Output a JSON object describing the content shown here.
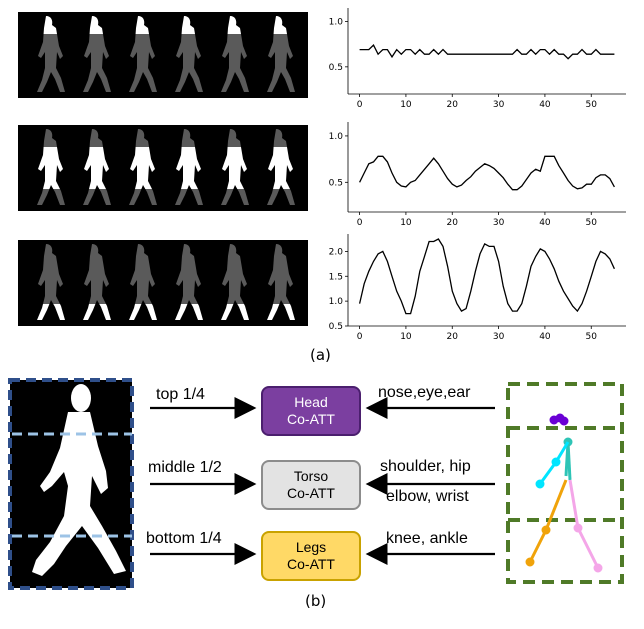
{
  "figure": {
    "caption_a": "(a)",
    "caption_b": "(b)"
  },
  "charts_meta": {
    "line_color": "#000000"
  },
  "chart_data": [
    {
      "type": "line",
      "x": [
        0,
        1,
        2,
        3,
        4,
        5,
        6,
        7,
        8,
        9,
        10,
        11,
        12,
        13,
        14,
        15,
        16,
        17,
        18,
        19,
        20,
        21,
        22,
        23,
        24,
        25,
        26,
        27,
        28,
        29,
        30,
        31,
        32,
        33,
        34,
        35,
        36,
        37,
        38,
        39,
        40,
        41,
        42,
        43,
        44,
        45,
        46,
        47,
        48,
        49,
        50,
        51,
        52,
        53,
        54,
        55
      ],
      "values": [
        0.69,
        0.69,
        0.69,
        0.74,
        0.64,
        0.69,
        0.69,
        0.61,
        0.69,
        0.64,
        0.69,
        0.69,
        0.64,
        0.69,
        0.64,
        0.64,
        0.69,
        0.64,
        0.69,
        0.64,
        0.64,
        0.64,
        0.64,
        0.64,
        0.64,
        0.64,
        0.64,
        0.64,
        0.64,
        0.64,
        0.64,
        0.64,
        0.64,
        0.64,
        0.69,
        0.64,
        0.64,
        0.69,
        0.64,
        0.69,
        0.69,
        0.64,
        0.69,
        0.64,
        0.64,
        0.59,
        0.64,
        0.64,
        0.69,
        0.64,
        0.64,
        0.69,
        0.64,
        0.64,
        0.64,
        0.64
      ],
      "xticks": [
        0,
        10,
        20,
        30,
        40,
        50
      ],
      "yticks": [
        0.5,
        1.0
      ],
      "ytick_labels": [
        "0.5",
        "1.0"
      ],
      "xlim": [
        -2.5,
        57.5
      ],
      "ylim": [
        0.2,
        1.15
      ],
      "grid": false
    },
    {
      "type": "line",
      "x": [
        0,
        1,
        2,
        3,
        4,
        5,
        6,
        7,
        8,
        9,
        10,
        11,
        12,
        13,
        14,
        15,
        16,
        17,
        18,
        19,
        20,
        21,
        22,
        23,
        24,
        25,
        26,
        27,
        28,
        29,
        30,
        31,
        32,
        33,
        34,
        35,
        36,
        37,
        38,
        39,
        40,
        41,
        42,
        43,
        44,
        45,
        46,
        47,
        48,
        49,
        50,
        51,
        52,
        53,
        54,
        55
      ],
      "values": [
        0.5,
        0.6,
        0.7,
        0.72,
        0.78,
        0.78,
        0.72,
        0.6,
        0.5,
        0.46,
        0.45,
        0.5,
        0.52,
        0.58,
        0.64,
        0.7,
        0.76,
        0.7,
        0.62,
        0.54,
        0.48,
        0.45,
        0.47,
        0.52,
        0.56,
        0.62,
        0.66,
        0.7,
        0.68,
        0.65,
        0.6,
        0.55,
        0.48,
        0.42,
        0.42,
        0.46,
        0.53,
        0.6,
        0.64,
        0.62,
        0.78,
        0.78,
        0.78,
        0.68,
        0.6,
        0.52,
        0.46,
        0.43,
        0.44,
        0.48,
        0.48,
        0.55,
        0.58,
        0.58,
        0.54,
        0.45
      ],
      "xticks": [
        0,
        10,
        20,
        30,
        40,
        50
      ],
      "yticks": [
        0.5,
        1.0
      ],
      "ytick_labels": [
        "0.5",
        "1.0"
      ],
      "xlim": [
        -2.5,
        57.5
      ],
      "ylim": [
        0.18,
        1.15
      ],
      "grid": false
    },
    {
      "type": "line",
      "x": [
        0,
        1,
        2,
        3,
        4,
        5,
        6,
        7,
        8,
        9,
        10,
        11,
        12,
        13,
        14,
        15,
        16,
        17,
        18,
        19,
        20,
        21,
        22,
        23,
        24,
        25,
        26,
        27,
        28,
        29,
        30,
        31,
        32,
        33,
        34,
        35,
        36,
        37,
        38,
        39,
        40,
        41,
        42,
        43,
        44,
        45,
        46,
        47,
        48,
        49,
        50,
        51,
        52,
        53,
        54,
        55
      ],
      "values": [
        0.95,
        1.35,
        1.6,
        1.8,
        1.95,
        2.0,
        1.8,
        1.5,
        1.2,
        1.0,
        0.75,
        0.75,
        1.1,
        1.6,
        1.9,
        2.2,
        2.2,
        2.25,
        2.1,
        1.7,
        1.2,
        0.95,
        0.8,
        0.85,
        1.2,
        1.6,
        1.95,
        2.15,
        2.1,
        2.1,
        1.8,
        1.3,
        0.95,
        0.8,
        0.8,
        0.95,
        1.3,
        1.7,
        1.9,
        2.05,
        2.0,
        1.85,
        1.65,
        1.4,
        1.2,
        1.05,
        0.9,
        0.8,
        0.95,
        1.2,
        1.5,
        1.8,
        2.0,
        1.95,
        1.85,
        1.65
      ],
      "xticks": [
        0,
        10,
        20,
        30,
        40,
        50
      ],
      "yticks": [
        0.5,
        1.0,
        1.5,
        2.0
      ],
      "ytick_labels": [
        "0.5",
        "1.0",
        "1.5",
        "2.0"
      ],
      "xlim": [
        -2.5,
        57.5
      ],
      "ylim": [
        0.5,
        2.35
      ],
      "grid": false
    }
  ],
  "diagram": {
    "arrows_left": [
      {
        "label": "top 1/4"
      },
      {
        "label": "middle 1/2"
      },
      {
        "label": "bottom 1/4"
      }
    ],
    "arrows_right": [
      {
        "label": "nose,eye,ear"
      },
      {
        "label": "shoulder, hip"
      },
      {
        "label": "elbow, wrist"
      },
      {
        "label": "knee, ankle"
      }
    ],
    "boxes": [
      {
        "line1": "Head",
        "line2": "Co-ATT",
        "fill": "#7b3fa0",
        "border": "#4b1f6e",
        "text_color": "#ffffff"
      },
      {
        "line1": "Torso",
        "line2": "Co-ATT",
        "fill": "#e3e3e3",
        "border": "#8c8c8c",
        "text_color": "#000000"
      },
      {
        "line1": "Legs",
        "line2": "Co-ATT",
        "fill": "#ffd966",
        "border": "#c9a200",
        "text_color": "#000000"
      }
    ],
    "silhouette_frame_color": "#2f4f8a",
    "silhouette_divider_color": "#9dc3e6",
    "pose_frame_color": "#4f7a28",
    "pose_colors": {
      "head": "#6a00d5",
      "torso": "#2ec4b6",
      "arm": "#00e5ff",
      "left_leg": "#f0a30a",
      "right_leg": "#f4a6e8"
    }
  }
}
